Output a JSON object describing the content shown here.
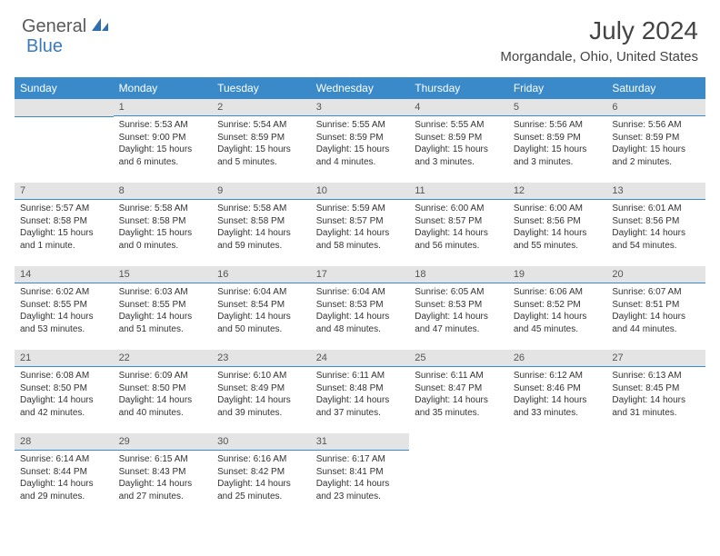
{
  "brand": {
    "part1": "General",
    "part2": "Blue"
  },
  "title": "July 2024",
  "location": "Morgandale, Ohio, United States",
  "colors": {
    "header_bg": "#3a8ac9",
    "header_text": "#ffffff",
    "daybar_bg": "#e4e4e4",
    "daybar_border": "#3a8ac9",
    "body_bg": "#ffffff",
    "text": "#333333",
    "brand_gray": "#5a5a5a",
    "brand_blue": "#3a7bbf"
  },
  "typography": {
    "title_fontsize": 28,
    "location_fontsize": 15,
    "header_fontsize": 12,
    "daynum_fontsize": 11,
    "body_fontsize": 10
  },
  "weekdays": [
    "Sunday",
    "Monday",
    "Tuesday",
    "Wednesday",
    "Thursday",
    "Friday",
    "Saturday"
  ],
  "weeks": [
    [
      null,
      {
        "n": "1",
        "sr": "Sunrise: 5:53 AM",
        "ss": "Sunset: 9:00 PM",
        "d1": "Daylight: 15 hours",
        "d2": "and 6 minutes."
      },
      {
        "n": "2",
        "sr": "Sunrise: 5:54 AM",
        "ss": "Sunset: 8:59 PM",
        "d1": "Daylight: 15 hours",
        "d2": "and 5 minutes."
      },
      {
        "n": "3",
        "sr": "Sunrise: 5:55 AM",
        "ss": "Sunset: 8:59 PM",
        "d1": "Daylight: 15 hours",
        "d2": "and 4 minutes."
      },
      {
        "n": "4",
        "sr": "Sunrise: 5:55 AM",
        "ss": "Sunset: 8:59 PM",
        "d1": "Daylight: 15 hours",
        "d2": "and 3 minutes."
      },
      {
        "n": "5",
        "sr": "Sunrise: 5:56 AM",
        "ss": "Sunset: 8:59 PM",
        "d1": "Daylight: 15 hours",
        "d2": "and 3 minutes."
      },
      {
        "n": "6",
        "sr": "Sunrise: 5:56 AM",
        "ss": "Sunset: 8:59 PM",
        "d1": "Daylight: 15 hours",
        "d2": "and 2 minutes."
      }
    ],
    [
      {
        "n": "7",
        "sr": "Sunrise: 5:57 AM",
        "ss": "Sunset: 8:58 PM",
        "d1": "Daylight: 15 hours",
        "d2": "and 1 minute."
      },
      {
        "n": "8",
        "sr": "Sunrise: 5:58 AM",
        "ss": "Sunset: 8:58 PM",
        "d1": "Daylight: 15 hours",
        "d2": "and 0 minutes."
      },
      {
        "n": "9",
        "sr": "Sunrise: 5:58 AM",
        "ss": "Sunset: 8:58 PM",
        "d1": "Daylight: 14 hours",
        "d2": "and 59 minutes."
      },
      {
        "n": "10",
        "sr": "Sunrise: 5:59 AM",
        "ss": "Sunset: 8:57 PM",
        "d1": "Daylight: 14 hours",
        "d2": "and 58 minutes."
      },
      {
        "n": "11",
        "sr": "Sunrise: 6:00 AM",
        "ss": "Sunset: 8:57 PM",
        "d1": "Daylight: 14 hours",
        "d2": "and 56 minutes."
      },
      {
        "n": "12",
        "sr": "Sunrise: 6:00 AM",
        "ss": "Sunset: 8:56 PM",
        "d1": "Daylight: 14 hours",
        "d2": "and 55 minutes."
      },
      {
        "n": "13",
        "sr": "Sunrise: 6:01 AM",
        "ss": "Sunset: 8:56 PM",
        "d1": "Daylight: 14 hours",
        "d2": "and 54 minutes."
      }
    ],
    [
      {
        "n": "14",
        "sr": "Sunrise: 6:02 AM",
        "ss": "Sunset: 8:55 PM",
        "d1": "Daylight: 14 hours",
        "d2": "and 53 minutes."
      },
      {
        "n": "15",
        "sr": "Sunrise: 6:03 AM",
        "ss": "Sunset: 8:55 PM",
        "d1": "Daylight: 14 hours",
        "d2": "and 51 minutes."
      },
      {
        "n": "16",
        "sr": "Sunrise: 6:04 AM",
        "ss": "Sunset: 8:54 PM",
        "d1": "Daylight: 14 hours",
        "d2": "and 50 minutes."
      },
      {
        "n": "17",
        "sr": "Sunrise: 6:04 AM",
        "ss": "Sunset: 8:53 PM",
        "d1": "Daylight: 14 hours",
        "d2": "and 48 minutes."
      },
      {
        "n": "18",
        "sr": "Sunrise: 6:05 AM",
        "ss": "Sunset: 8:53 PM",
        "d1": "Daylight: 14 hours",
        "d2": "and 47 minutes."
      },
      {
        "n": "19",
        "sr": "Sunrise: 6:06 AM",
        "ss": "Sunset: 8:52 PM",
        "d1": "Daylight: 14 hours",
        "d2": "and 45 minutes."
      },
      {
        "n": "20",
        "sr": "Sunrise: 6:07 AM",
        "ss": "Sunset: 8:51 PM",
        "d1": "Daylight: 14 hours",
        "d2": "and 44 minutes."
      }
    ],
    [
      {
        "n": "21",
        "sr": "Sunrise: 6:08 AM",
        "ss": "Sunset: 8:50 PM",
        "d1": "Daylight: 14 hours",
        "d2": "and 42 minutes."
      },
      {
        "n": "22",
        "sr": "Sunrise: 6:09 AM",
        "ss": "Sunset: 8:50 PM",
        "d1": "Daylight: 14 hours",
        "d2": "and 40 minutes."
      },
      {
        "n": "23",
        "sr": "Sunrise: 6:10 AM",
        "ss": "Sunset: 8:49 PM",
        "d1": "Daylight: 14 hours",
        "d2": "and 39 minutes."
      },
      {
        "n": "24",
        "sr": "Sunrise: 6:11 AM",
        "ss": "Sunset: 8:48 PM",
        "d1": "Daylight: 14 hours",
        "d2": "and 37 minutes."
      },
      {
        "n": "25",
        "sr": "Sunrise: 6:11 AM",
        "ss": "Sunset: 8:47 PM",
        "d1": "Daylight: 14 hours",
        "d2": "and 35 minutes."
      },
      {
        "n": "26",
        "sr": "Sunrise: 6:12 AM",
        "ss": "Sunset: 8:46 PM",
        "d1": "Daylight: 14 hours",
        "d2": "and 33 minutes."
      },
      {
        "n": "27",
        "sr": "Sunrise: 6:13 AM",
        "ss": "Sunset: 8:45 PM",
        "d1": "Daylight: 14 hours",
        "d2": "and 31 minutes."
      }
    ],
    [
      {
        "n": "28",
        "sr": "Sunrise: 6:14 AM",
        "ss": "Sunset: 8:44 PM",
        "d1": "Daylight: 14 hours",
        "d2": "and 29 minutes."
      },
      {
        "n": "29",
        "sr": "Sunrise: 6:15 AM",
        "ss": "Sunset: 8:43 PM",
        "d1": "Daylight: 14 hours",
        "d2": "and 27 minutes."
      },
      {
        "n": "30",
        "sr": "Sunrise: 6:16 AM",
        "ss": "Sunset: 8:42 PM",
        "d1": "Daylight: 14 hours",
        "d2": "and 25 minutes."
      },
      {
        "n": "31",
        "sr": "Sunrise: 6:17 AM",
        "ss": "Sunset: 8:41 PM",
        "d1": "Daylight: 14 hours",
        "d2": "and 23 minutes."
      },
      null,
      null,
      null
    ]
  ]
}
